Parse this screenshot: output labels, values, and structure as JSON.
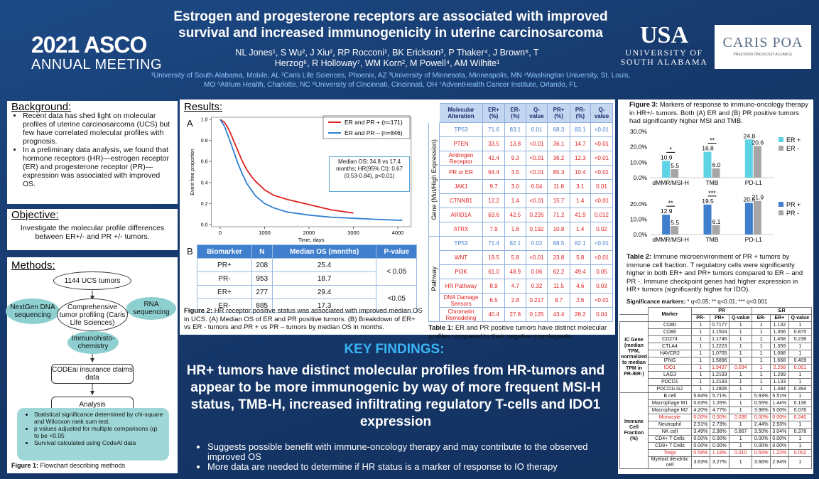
{
  "header": {
    "title": [
      "Estrogen and progesterone receptors are associated with improved",
      "survival and increased immunogenicity in uterine carcinosarcoma"
    ],
    "authors": "NL Jones¹, S Wu², J Xiu², RP Rocconi¹, BK Erickson³, P Thaker⁴, J Brown⁵, T Herzog⁶, R Holloway⁷, WM Korn², M Powell⁴, AM Wilhite¹",
    "affiliations": "¹University of South Alabama, Mobile, AL ²Caris Life Sciences, Phoenix, AZ ³University of Minnesota, Minneapolis, MN ⁴Washington University, St. Louis, MO ⁵Atrium Health, Charlotte, NC ⁶University of Cincinnati, Cincinnati, OH ⁷AdventHealth Cancer Institute, Orlando, FL"
  },
  "logos": {
    "asco_year": "2021 ASCO",
    "asco_sub": "ANNUAL MEETING",
    "usa": "USA",
    "usa_name": [
      "UNIVERSITY OF",
      "SOUTH ALABAMA"
    ],
    "caris": "CARIS POA",
    "caris_sub": "PRECISION ONCOLOGY ALLIANCE"
  },
  "background": {
    "heading": "Background:",
    "bullets": [
      "Recent data has shed light on molecular profiles of uterine carcinosarcoma (UCS) but few have correlated molecular profiles with prognosis.",
      "In a preliminary data analysis, we found that hormone receptors (HR)—estrogen receptor (ER) and progesterone receptor (PR)—expression was associated with improved OS."
    ]
  },
  "objective": {
    "heading": "Objective:",
    "text": "Investigate the molecular profile differences between ER+/- and PR +/- tumors."
  },
  "methods": {
    "heading": "Methods:",
    "nodes": [
      "1144 UCS tumors",
      "NextGen DNA sequencing",
      "Comprehensive tumor profiling (Caris Life Sciences)",
      "RNA sequencing",
      "Immunohisto-chemistry",
      "CODEai insurance claims data",
      "Analysis"
    ],
    "stats": [
      "Statistical significance determined by chi-square and Wilcoxon rank sum test.",
      "p values adjusted for multiple comparisons (q) to be <0.05",
      "Survival calculated using CodeAI data"
    ],
    "caption_label": "Figure 1:",
    "caption": " Flowchart describing methods"
  },
  "results": {
    "heading": "Results:",
    "panel_a": "A",
    "panel_b": "B",
    "caption_label": "Figure 2:",
    "caption": " HR receptor positive status was associated with improved median OS in UCS. (A) Median OS of ER and PR positive tumors. (B) Breakdown of ER+ vs ER - tumors and PR + vs PR – tumors by median OS in months."
  },
  "km_chart": {
    "type": "line",
    "xlabel": "Time, days",
    "ylabel": "Event free proportion",
    "xlim": [
      -200,
      4300
    ],
    "ylim": [
      0,
      1
    ],
    "xticks": [
      0,
      1000,
      2000,
      3000,
      4000
    ],
    "yticks": [
      {
        "value": 0,
        "label": "0.0"
      },
      0.2,
      0.4,
      0.6,
      0.8,
      {
        "value": 1,
        "label": "1.0"
      }
    ],
    "series": [
      {
        "name": "ER and PR + (n=171)",
        "color": "#e02020",
        "x": [
          0,
          100,
          200,
          300,
          400,
          500,
          600,
          700,
          800,
          1000,
          1200,
          1500,
          2000,
          2500,
          3000
        ],
        "values": [
          1,
          0.97,
          0.9,
          0.8,
          0.7,
          0.6,
          0.52,
          0.46,
          0.41,
          0.33,
          0.28,
          0.24,
          0.19,
          0.14,
          0.11
        ]
      },
      {
        "name": "ER and PR – (n=846)",
        "color": "#2f7fd0",
        "x": [
          0,
          100,
          200,
          300,
          400,
          500,
          600,
          700,
          800,
          1000,
          1200,
          1500,
          2000,
          2500,
          3000,
          3500,
          4100
        ],
        "values": [
          1,
          0.93,
          0.82,
          0.7,
          0.58,
          0.48,
          0.39,
          0.33,
          0.27,
          0.2,
          0.16,
          0.12,
          0.09,
          0.07,
          0.06,
          0.05,
          0.04
        ]
      }
    ],
    "annotation": "Median OS: 34.8 vs 17.4 months; HR(95% CI): 0.67 (0.53-0.84), p<0.01)"
  },
  "table_b": {
    "header": [
      "Biomarker",
      "N",
      "Median OS (months)",
      "P-value"
    ],
    "rows": [
      [
        "PR+",
        "208",
        "25.4"
      ],
      [
        "PR-",
        "953",
        "18.7"
      ],
      [
        "ER+",
        "277",
        "29.4"
      ],
      [
        "ER-",
        "885",
        "17.3"
      ]
    ],
    "pvalues": [
      "< 0.05",
      "<0.05"
    ]
  },
  "table1": {
    "header": [
      "Molecular Alteration",
      "ER+ (%)",
      "ER- (%)",
      "Q-value",
      "PR+ (%)",
      "PR- (%)",
      "Q-value"
    ],
    "groups": [
      {
        "label": "Gene (Mut/High Expression)",
        "rows": [
          {
            "cells": [
              "TP53",
              "71.6",
              "83.1",
              "0.01",
              "68.3",
              "83.1",
              "<0.01"
            ],
            "color": "#3f7fce"
          },
          {
            "cells": [
              "PTEN",
              "33.5",
              "13.8",
              "<0.01",
              "36.1",
              "14.7",
              "<0.01"
            ],
            "color": "#e02020"
          },
          {
            "cells": [
              "Androgen Receptor",
              "41.4",
              "9.3",
              "<0.01",
              "36.2",
              "12.3",
              "<0.01"
            ],
            "color": "#e02020"
          },
          {
            "cells": [
              "PR or ER",
              "64.4",
              "3.5",
              "<0.01",
              "85.3",
              "10.4",
              "<0.01"
            ],
            "color": "#e02020"
          },
          {
            "cells": [
              "JAK1",
              "9.7",
              "3.0",
              "0.04",
              "11.8",
              "3.1",
              "0.01"
            ],
            "color": "#e02020"
          },
          {
            "cells": [
              "CTNNB1",
              "12.2",
              "1.4",
              "<0.01",
              "15.7",
              "1.4",
              "<0.01"
            ],
            "color": "#e02020"
          },
          {
            "cells": [
              "ARID1A",
              "63.6",
              "42.5",
              "0.226",
              "71.2",
              "41.9",
              "0.012"
            ],
            "color": "#e02020"
          },
          {
            "cells": [
              "ATRX",
              "7.9",
              "1.6",
              "0.192",
              "10.8",
              "1.4",
              "0.02"
            ],
            "color": "#e02020"
          }
        ]
      },
      {
        "label": "Pathway",
        "rows": [
          {
            "cells": [
              "TP53",
              "71.4",
              "82.1",
              "0.02",
              "68.5",
              "82.1",
              "<0.01"
            ],
            "color": "#3f7fce"
          },
          {
            "cells": [
              "WNT",
              "19.5",
              "5.8",
              "<0.01",
              "23.8",
              "5.8",
              "<0.01"
            ],
            "color": "#e02020"
          },
          {
            "cells": [
              "PI3K",
              "61.0",
              "48.9",
              "0.06",
              "62.2",
              "49.4",
              "0.05"
            ],
            "color": "#e02020"
          },
          {
            "cells": [
              "HR Pathway",
              "8.9",
              "4.7",
              "0.32",
              "11.5",
              "4.6",
              "0.03"
            ],
            "color": "#e02020"
          },
          {
            "cells": [
              "DNA Damage Sensors",
              "6.5",
              "2.8",
              "0.217",
              "8.7",
              "2.6",
              "<0.01"
            ],
            "color": "#e02020"
          },
          {
            "cells": [
              "Chromatin Remodeling",
              "40.4",
              "27.8",
              "0.125",
              "43.4",
              "28.2",
              "0.04"
            ],
            "color": "#e02020"
          }
        ]
      }
    ],
    "caption_label": "Table 1:",
    "caption": " ER and PR positive tumors have distinct molecular profiles compared to their negative counterparts."
  },
  "fig3": {
    "caption_label": "Figure 3:",
    "caption": " Markers of response to immuno-oncology therapy in HR+/- tumors. Both (A) ER and (B) PR positive tumors had significantly higher MSI and TMB.",
    "charts": [
      {
        "type": "bar",
        "categories": [
          "dMMR/MSI-H",
          "TMB",
          "PD-L1"
        ],
        "ylim": [
          0,
          30
        ],
        "yticks": [
          {
            "value": 0,
            "label": "0.0%"
          },
          {
            "value": 10,
            "label": "10.0%"
          },
          {
            "value": 20,
            "label": "20.0%"
          },
          {
            "value": 30,
            "label": "30.0%"
          }
        ],
        "series": [
          {
            "name": "ER +",
            "color": "#5fd3e6",
            "values": [
              10.9,
              16.8,
              24.8
            ]
          },
          {
            "name": "ER -",
            "color": "#a6a6a6",
            "values": [
              5.5,
              6,
              20.6
            ],
            "value_labels": [
              "5.5",
              "6.0",
              "20.6"
            ]
          }
        ],
        "significance": [
          "*",
          "**",
          null
        ]
      },
      {
        "type": "bar",
        "categories": [
          "dMMR/MSI-H",
          "TMB",
          "PD-L1"
        ],
        "ylim": [
          0,
          25
        ],
        "yticks": [
          {
            "value": 0,
            "label": "0.0%"
          },
          {
            "value": 10,
            "label": "10.0%"
          },
          {
            "value": 20,
            "label": "20.0%"
          }
        ],
        "series": [
          {
            "name": "PR +",
            "color": "#3f7fce",
            "values": [
              12.9,
              19.5,
              20.6
            ]
          },
          {
            "name": "PR -",
            "color": "#a6a6a6",
            "values": [
              5.5,
              6.1,
              21.9
            ]
          }
        ],
        "significance": [
          "**",
          "***",
          null
        ]
      }
    ]
  },
  "table2": {
    "caption_label": "Table 2:",
    "caption": " Immune microenvironment of PR + tumors by immune cell fraction. T regulatory cells were significantly higher in both ER+ and PR+ tumors compared to ER – and PR -. Immune checkpoint genes had higher expression in HR+ tumors (significantly higher for IDO).",
    "sig_label": "Significance markers:",
    "sig_text": " * q<0.05; ** q<0.01; *** q<0.001",
    "header": {
      "marker": "Marker",
      "pr": "PR",
      "er": "ER",
      "sub": [
        "PR-",
        "PR+",
        "Q-value",
        "ER-",
        "ER+",
        "Q-value"
      ]
    },
    "groups": [
      {
        "label": "IC Gene (median TPM, normalized to median TPM in PR-/ER-)",
        "rows": [
          {
            "cells": [
              "CD80",
              "1",
              "0.7177",
              "1",
              "1",
              "1.132",
              "1"
            ]
          },
          {
            "cells": [
              "CD86",
              "1",
              "1.1504",
              "1",
              "1",
              "1.356",
              "0.875"
            ]
          },
          {
            "cells": [
              "CD274",
              "1",
              "1.1746",
              "1",
              "1",
              "1.458",
              "0.238"
            ]
          },
          {
            "cells": [
              "CTLA4",
              "1",
              "1.2223",
              "1",
              "1",
              "1.359",
              "1"
            ]
          },
          {
            "cells": [
              "HAVCR2",
              "1",
              "1.0705",
              "1",
              "1",
              "1.088",
              "1"
            ]
          },
          {
            "cells": [
              "IFNG",
              "1",
              "1.5896",
              "1",
              "1",
              "1.668",
              "0.409"
            ]
          },
          {
            "cells": [
              "IDO1",
              "1",
              "1.9437",
              "0.034",
              "1",
              "2.258",
              "0.001"
            ],
            "color": "#e02020"
          },
          {
            "cells": [
              "LAG3",
              "1",
              "1.2193",
              "1",
              "1",
              "1.299",
              "1"
            ]
          },
          {
            "cells": [
              "PDCD1",
              "1",
              "1.2193",
              "1",
              "1",
              "1.133",
              "1"
            ]
          },
          {
            "cells": [
              "PDCD1LG2",
              "1",
              "1.2806",
              "1",
              "1",
              "1.484",
              "0.394"
            ]
          }
        ]
      },
      {
        "label": "Immune Cell Fraction (%)",
        "rows": [
          {
            "cells": [
              "B cell",
              "5.84%",
              "5.71%",
              "1",
              "5.93%",
              "5.51%",
              "1"
            ]
          },
          {
            "cells": [
              "Macrophage M1",
              "0.63%",
              "1.26%",
              "1",
              "0.55%",
              "1.44%",
              "0.136"
            ]
          },
          {
            "cells": [
              "Macrophage M2",
              "4.20%",
              "4.77%",
              "1",
              "3.98%",
              "5.00%",
              "0.076"
            ]
          },
          {
            "cells": [
              "Monocyte",
              "0.00%",
              "0.00%",
              "0.036",
              "0.00%",
              "0.00%",
              "0.240"
            ],
            "color": "#e02020"
          },
          {
            "cells": [
              "Neutrophil",
              "2.51%",
              "2.73%",
              "1",
              "2.44%",
              "2.93%",
              "1"
            ]
          },
          {
            "cells": [
              "NK cell",
              "3.49%",
              "2.98%",
              "0.667",
              "3.50%",
              "3.04%",
              "0.378"
            ]
          },
          {
            "cells": [
              "CD4+ T Cells",
              "0.00%",
              "0.00%",
              "1",
              "0.00%",
              "0.00%",
              "1"
            ]
          },
          {
            "cells": [
              "CD8+ T Cells",
              "0.00%",
              "0.00%",
              "1",
              "0.00%",
              "0.00%",
              "1"
            ]
          },
          {
            "cells": [
              "Tregs",
              "0.59%",
              "1.18%",
              "0.010",
              "0.55%",
              "1.22%",
              "0.002"
            ],
            "color": "#e02020"
          },
          {
            "cells": [
              "Myeloid dendritic cell",
              "3.63%",
              "3.27%",
              "1",
              "3.66%",
              "2.94%",
              "1"
            ]
          }
        ]
      }
    ]
  },
  "key_findings": {
    "heading": "KEY FINDINGS:",
    "statement": "HR+ tumors have distinct molecular profiles from HR-tumors and appear to be more immunogenic by way of more frequent MSI-H status, TMB-H, increased infiltrating regulatory T-cells and IDO1 expression",
    "bullets": [
      "Suggests possible benefit with immune-oncology therapy and may contribute to the observed improved OS",
      "More data are needed to determine if HR status is a marker of response to IO therapy"
    ]
  }
}
